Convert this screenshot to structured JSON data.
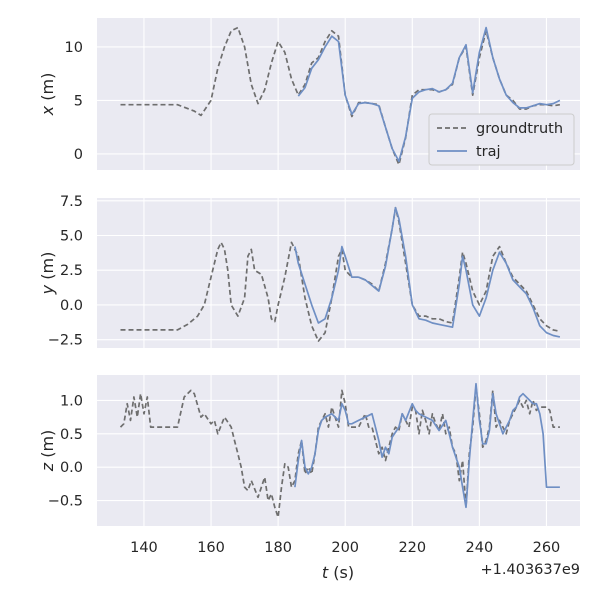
{
  "chart_data": {
    "type": "line",
    "xlabel_var": "t",
    "xlabel_unit": " (s)",
    "x_offset_label": "+1.403637e9",
    "x_range": [
      126,
      270
    ],
    "x_ticks": [
      140,
      160,
      180,
      200,
      220,
      240,
      260
    ],
    "legend": {
      "position": "right",
      "entries": [
        "groundtruth",
        "traj"
      ]
    },
    "colors": {
      "groundtruth": "#6e6e6e",
      "traj": "#6f8fc4",
      "background": "#eaeaf2",
      "grid": "#ffffff"
    },
    "panels": [
      {
        "var": "x",
        "unit": " (m)",
        "ylim": [
          -1.5,
          12.7
        ],
        "yticks": [
          0,
          5,
          10
        ],
        "groundtruth": {
          "x": [
            133,
            140,
            150,
            155,
            157,
            160,
            162,
            164,
            166,
            168,
            170,
            172,
            174,
            176,
            178,
            180,
            182,
            184,
            186,
            188,
            190,
            192,
            194,
            196,
            198,
            200,
            202,
            204,
            206,
            208,
            210,
            212,
            214,
            216,
            218,
            220,
            222,
            224,
            226,
            228,
            230,
            232,
            234,
            236,
            238,
            240,
            242,
            244,
            246,
            248,
            250,
            252,
            254,
            256,
            258,
            260,
            262,
            264
          ],
          "y": [
            4.6,
            4.6,
            4.6,
            4.0,
            3.6,
            5.0,
            8.0,
            10.0,
            11.5,
            11.8,
            10.0,
            6.5,
            4.7,
            6.0,
            8.5,
            10.5,
            9.5,
            7.0,
            5.5,
            6.5,
            8.5,
            9.0,
            10.5,
            11.5,
            11.0,
            5.5,
            3.5,
            4.8,
            4.8,
            4.7,
            4.6,
            2.5,
            0.5,
            -1.0,
            1.5,
            5.5,
            6.0,
            6.0,
            6.0,
            5.8,
            6.0,
            6.5,
            9.0,
            10.0,
            5.5,
            9.0,
            11.5,
            9.0,
            7.0,
            5.5,
            5.0,
            4.2,
            4.2,
            4.5,
            4.6,
            4.6,
            4.5,
            4.6
          ]
        },
        "traj": {
          "x": [
            186,
            188,
            190,
            192,
            194,
            196,
            198,
            200,
            202,
            204,
            206,
            208,
            210,
            212,
            214,
            216,
            218,
            220,
            222,
            224,
            226,
            228,
            230,
            232,
            234,
            236,
            238,
            240,
            242,
            244,
            246,
            248,
            250,
            252,
            254,
            256,
            258,
            260,
            262,
            264
          ],
          "y": [
            5.4,
            6.2,
            8.0,
            8.8,
            10.0,
            11.0,
            10.5,
            5.5,
            3.7,
            4.7,
            4.8,
            4.7,
            4.5,
            2.5,
            0.5,
            -0.7,
            1.6,
            5.2,
            5.8,
            6.0,
            6.1,
            5.8,
            6.0,
            6.6,
            9.0,
            10.2,
            5.7,
            9.5,
            11.8,
            9.0,
            7.0,
            5.5,
            4.8,
            4.3,
            4.3,
            4.5,
            4.7,
            4.6,
            4.7,
            5.0
          ]
        }
      },
      {
        "var": "y",
        "unit": " (m)",
        "ylim": [
          -3.1,
          7.7
        ],
        "yticks": [
          -2.5,
          0.0,
          2.5,
          5.0,
          7.5
        ],
        "ytick_labels": [
          "−2.5",
          "0.0",
          "2.5",
          "5.0",
          "7.5"
        ],
        "groundtruth": {
          "x": [
            133,
            140,
            150,
            153,
            156,
            158,
            160,
            162,
            163,
            164,
            165,
            166,
            168,
            170,
            171,
            172,
            173,
            175,
            177,
            178,
            179,
            180,
            182,
            184,
            186,
            188,
            190,
            192,
            194,
            196,
            198,
            199,
            200,
            202,
            204,
            206,
            208,
            210,
            212,
            214,
            215,
            216,
            218,
            220,
            222,
            224,
            226,
            228,
            230,
            232,
            234,
            235,
            236,
            238,
            240,
            242,
            244,
            246,
            248,
            250,
            252,
            254,
            256,
            258,
            260,
            262,
            264
          ],
          "y": [
            -1.8,
            -1.8,
            -1.8,
            -1.4,
            -0.8,
            0.0,
            2.0,
            4.0,
            4.5,
            4.0,
            2.5,
            0.0,
            -0.8,
            0.5,
            3.5,
            4.0,
            2.5,
            2.2,
            0.5,
            -1.0,
            -1.2,
            0.0,
            2.0,
            4.5,
            3.5,
            0.5,
            -1.5,
            -2.6,
            -2.0,
            0.5,
            3.5,
            4.0,
            2.5,
            2.0,
            2.0,
            1.8,
            1.5,
            1.0,
            3.0,
            5.5,
            7.0,
            6.0,
            3.0,
            0.0,
            -0.8,
            -0.8,
            -1.0,
            -1.0,
            -1.2,
            -1.3,
            2.0,
            3.8,
            3.0,
            1.0,
            0.0,
            1.0,
            3.5,
            4.2,
            3.0,
            2.0,
            1.5,
            1.0,
            0.0,
            -1.0,
            -1.5,
            -1.8,
            -1.9
          ]
        },
        "traj": {
          "x": [
            185,
            186,
            188,
            190,
            192,
            194,
            196,
            198,
            199,
            200,
            202,
            204,
            206,
            208,
            210,
            212,
            214,
            215,
            216,
            218,
            220,
            222,
            224,
            226,
            228,
            230,
            232,
            234,
            235,
            236,
            238,
            240,
            242,
            244,
            246,
            248,
            250,
            252,
            254,
            256,
            258,
            260,
            262,
            264
          ],
          "y": [
            4.2,
            3.0,
            1.5,
            0.0,
            -1.3,
            -1.0,
            0.5,
            2.5,
            4.2,
            3.5,
            2.0,
            2.0,
            1.8,
            1.4,
            1.0,
            2.8,
            5.5,
            7.0,
            6.2,
            3.5,
            0.0,
            -1.0,
            -1.1,
            -1.3,
            -1.4,
            -1.5,
            -1.6,
            1.5,
            3.5,
            2.5,
            0.0,
            -0.8,
            0.5,
            2.5,
            3.8,
            3.0,
            1.8,
            1.3,
            0.8,
            -0.2,
            -1.5,
            -2.0,
            -2.2,
            -2.3
          ]
        }
      },
      {
        "var": "z",
        "unit": " (m)",
        "ylim": [
          -0.88,
          1.38
        ],
        "yticks": [
          -0.5,
          0.0,
          0.5,
          1.0
        ],
        "ytick_labels": [
          "−0.5",
          "0.0",
          "0.5",
          "1.0"
        ],
        "groundtruth": {
          "x": [
            133,
            134,
            135,
            136,
            137,
            138,
            139,
            140,
            141,
            142,
            145,
            150,
            152,
            154,
            155,
            157,
            158,
            160,
            161,
            162,
            164,
            166,
            167,
            168,
            169,
            170,
            171,
            172,
            174,
            176,
            177,
            178,
            179,
            180,
            181,
            182,
            183,
            184,
            185,
            186,
            187,
            188,
            189,
            190,
            191,
            192,
            193,
            194,
            195,
            196,
            197,
            198,
            199,
            200,
            201,
            202,
            204,
            206,
            207,
            208,
            209,
            210,
            211,
            212,
            213,
            214,
            215,
            216,
            217,
            218,
            219,
            220,
            221,
            222,
            223,
            224,
            225,
            226,
            227,
            228,
            229,
            230,
            231,
            232,
            233,
            234,
            235,
            236,
            237,
            238,
            239,
            240,
            241,
            242,
            243,
            244,
            245,
            246,
            247,
            248,
            249,
            250,
            251,
            252,
            253,
            254,
            255,
            256,
            257,
            258,
            259,
            260,
            261,
            262,
            263,
            264
          ],
          "y": [
            0.6,
            0.65,
            0.95,
            0.7,
            1.05,
            0.75,
            1.1,
            0.8,
            1.05,
            0.6,
            0.6,
            0.6,
            1.05,
            1.15,
            1.1,
            0.75,
            0.8,
            0.65,
            0.7,
            0.5,
            0.75,
            0.6,
            0.4,
            0.2,
            0.0,
            -0.3,
            -0.35,
            -0.2,
            -0.45,
            -0.15,
            -0.5,
            -0.4,
            -0.6,
            -0.75,
            -0.3,
            0.05,
            0.0,
            -0.3,
            -0.2,
            0.2,
            0.4,
            -0.1,
            0.0,
            -0.1,
            0.2,
            0.6,
            0.7,
            0.8,
            0.6,
            0.9,
            0.75,
            0.6,
            1.15,
            0.95,
            0.6,
            0.6,
            0.6,
            0.8,
            0.6,
            0.6,
            0.4,
            0.2,
            0.3,
            0.1,
            0.3,
            0.5,
            0.6,
            0.55,
            0.8,
            0.7,
            0.6,
            0.9,
            0.85,
            0.5,
            0.85,
            0.7,
            0.5,
            0.8,
            0.65,
            0.55,
            0.8,
            0.5,
            0.6,
            0.3,
            0.2,
            -0.2,
            0.1,
            -0.6,
            0.2,
            0.6,
            1.2,
            0.8,
            0.3,
            0.4,
            0.6,
            1.15,
            0.6,
            0.7,
            0.6,
            0.5,
            0.7,
            0.8,
            0.9,
            1.0,
            0.9,
            1.0,
            0.8,
            1.0,
            0.85,
            0.9,
            0.9,
            0.9,
            0.85,
            0.6,
            0.6,
            0.6
          ]
        },
        "traj": {
          "x": [
            185,
            186,
            187,
            188,
            189,
            190,
            191,
            192,
            193,
            194,
            196,
            198,
            199,
            200,
            201,
            202,
            204,
            206,
            208,
            209,
            210,
            211,
            212,
            213,
            214,
            216,
            217,
            218,
            220,
            221,
            222,
            224,
            226,
            228,
            230,
            231,
            232,
            233,
            234,
            235,
            236,
            237,
            238,
            239,
            240,
            241,
            242,
            243,
            244,
            245,
            246,
            247,
            248,
            249,
            250,
            251,
            252,
            253,
            254,
            255,
            256,
            257,
            258,
            259,
            260,
            261,
            262,
            263,
            264
          ],
          "y": [
            -0.3,
            0.1,
            0.4,
            0.0,
            -0.1,
            0.0,
            0.2,
            0.55,
            0.7,
            0.75,
            0.8,
            0.7,
            0.95,
            0.85,
            0.65,
            0.65,
            0.7,
            0.75,
            0.8,
            0.6,
            0.4,
            0.15,
            0.3,
            0.2,
            0.45,
            0.6,
            0.8,
            0.7,
            0.95,
            0.85,
            0.8,
            0.75,
            0.7,
            0.55,
            0.7,
            0.5,
            0.3,
            0.15,
            0.0,
            -0.3,
            -0.6,
            0.1,
            0.7,
            1.25,
            0.7,
            0.35,
            0.35,
            0.55,
            1.1,
            0.8,
            0.65,
            0.5,
            0.6,
            0.7,
            0.85,
            0.9,
            1.05,
            1.1,
            1.05,
            1.0,
            0.95,
            0.95,
            0.8,
            0.5,
            -0.3,
            -0.3,
            -0.3,
            -0.3,
            -0.3
          ]
        }
      }
    ]
  }
}
